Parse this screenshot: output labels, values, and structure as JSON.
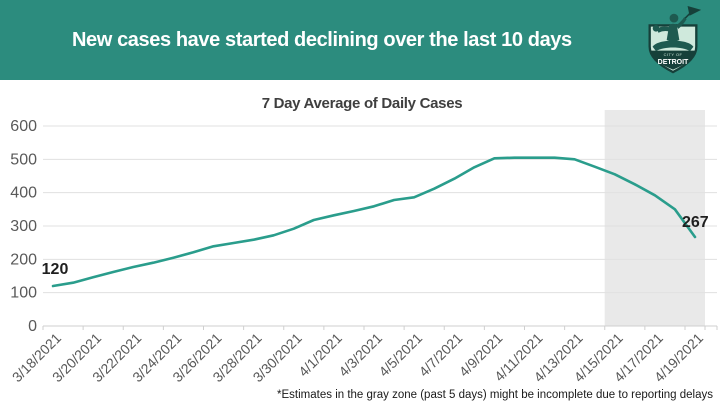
{
  "header": {
    "title": "New cases have started declining over the last 10 days",
    "logo": {
      "line1": "CITY OF",
      "line2": "DETROIT"
    }
  },
  "chart_data": {
    "type": "line",
    "title": "7 Day Average of Daily Cases",
    "xlabel": "",
    "ylabel": "",
    "grid": true,
    "yticks": [
      0,
      100,
      200,
      300,
      400,
      500,
      600
    ],
    "ylim": [
      0,
      640
    ],
    "x": [
      "3/18/2021",
      "3/19/2021",
      "3/20/2021",
      "3/21/2021",
      "3/22/2021",
      "3/23/2021",
      "3/24/2021",
      "3/25/2021",
      "3/26/2021",
      "3/27/2021",
      "3/28/2021",
      "3/29/2021",
      "3/30/2021",
      "3/31/2021",
      "4/1/2021",
      "4/2/2021",
      "4/3/2021",
      "4/4/2021",
      "4/5/2021",
      "4/6/2021",
      "4/7/2021",
      "4/8/2021",
      "4/9/2021",
      "4/10/2021",
      "4/11/2021",
      "4/12/2021",
      "4/13/2021",
      "4/14/2021",
      "4/15/2021",
      "4/16/2021",
      "4/17/2021",
      "4/18/2021",
      "4/19/2021"
    ],
    "values": [
      120,
      130,
      146,
      162,
      177,
      190,
      205,
      221,
      239,
      249,
      259,
      272,
      292,
      318,
      332,
      345,
      359,
      378,
      386,
      412,
      442,
      476,
      503,
      505,
      505,
      505,
      500,
      478,
      455,
      425,
      392,
      350,
      267
    ],
    "x_tick_every": 2,
    "point_labels": {
      "first": "120",
      "last": "267"
    },
    "gray_zone": {
      "days": 5,
      "start_date": "4/15/2021"
    },
    "line_color": "#2a9d8c"
  },
  "footnote": "*Estimates in the gray zone (past 5 days) might be incomplete due to reporting delays",
  "colors": {
    "header_bg": "#2c8c7e",
    "header_text": "#ffffff",
    "line": "#2a9d8c",
    "gridline": "#e0e0e0",
    "axis": "#cfcfcf",
    "gray_zone": "#e9e9e9",
    "tick_label": "#595959",
    "chart_title": "#3f3f3f",
    "data_label": "#1f1f1f",
    "logo_shield": "#cfe9dc",
    "logo_dark": "#16403a",
    "logo_figure": "#1e5a50"
  }
}
